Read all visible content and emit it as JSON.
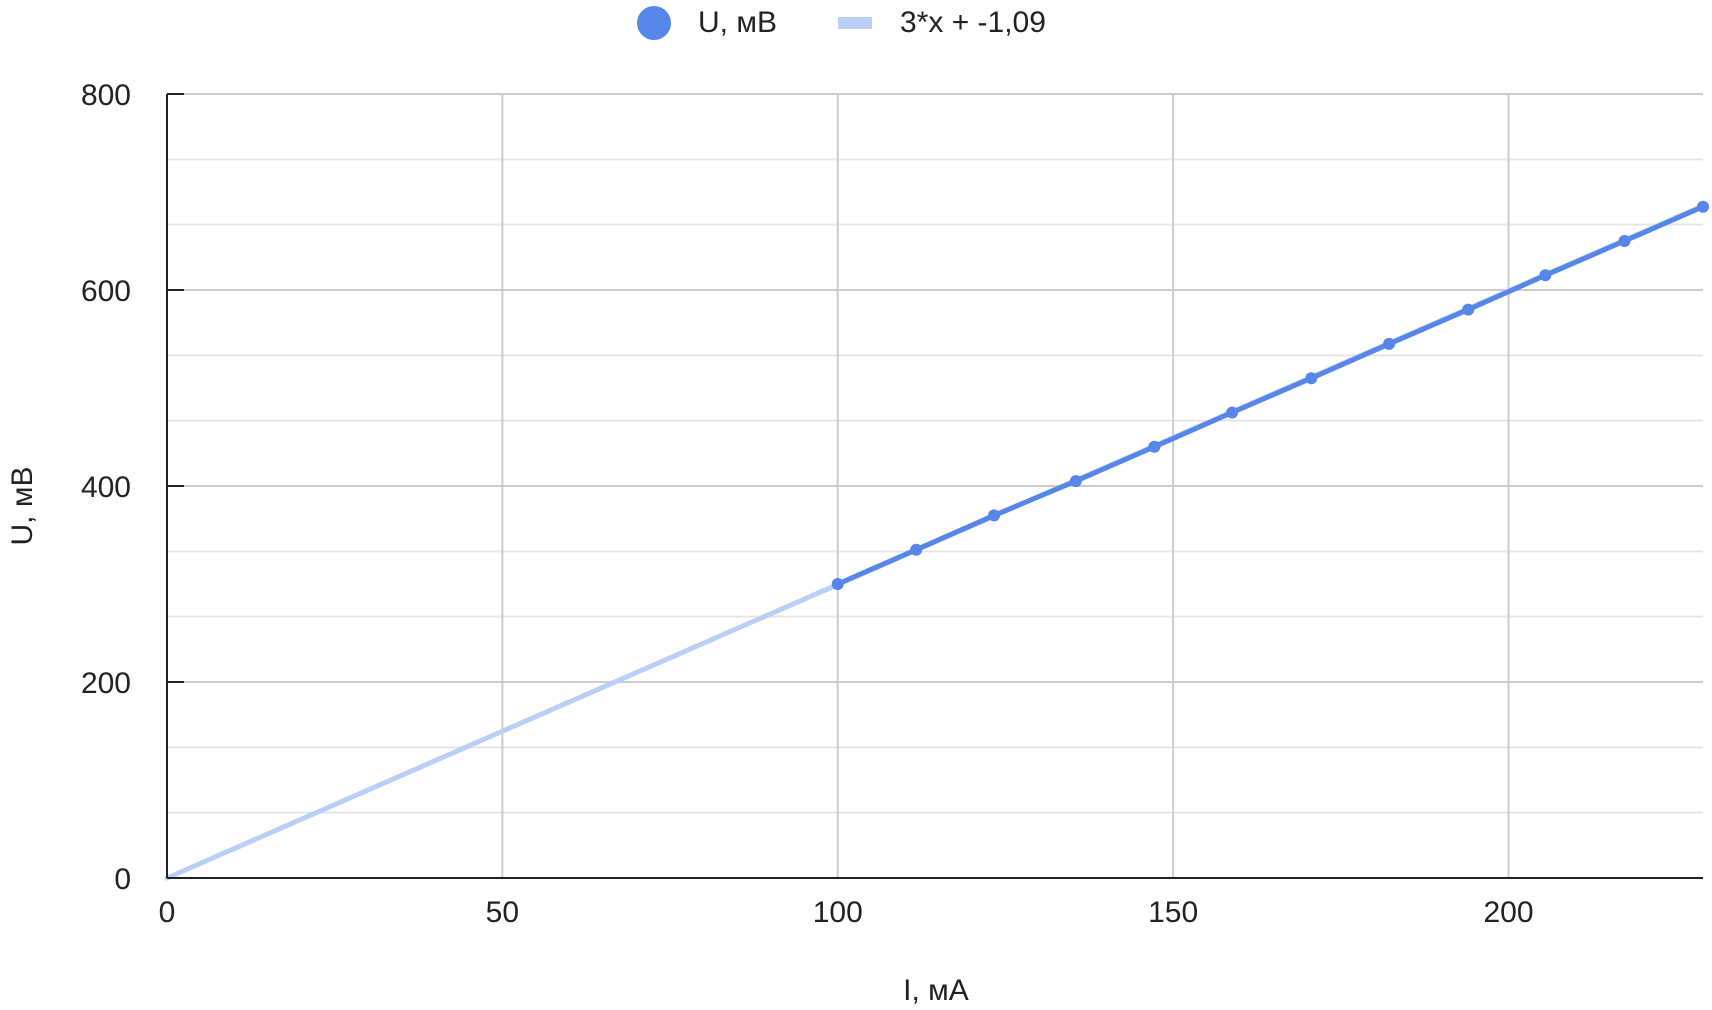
{
  "chart_data": {
    "type": "scatter",
    "title": "",
    "xlabel": "I, мА",
    "ylabel": "U, мВ",
    "xlim": [
      0,
      229
    ],
    "ylim": [
      0,
      800
    ],
    "x_ticks": [
      0,
      50,
      100,
      150,
      200
    ],
    "x_tick_labels": [
      "0",
      "50",
      "100",
      "150",
      "200"
    ],
    "y_ticks": [
      0,
      200,
      400,
      600,
      800
    ],
    "y_tick_labels": [
      "0",
      "200",
      "400",
      "600",
      "800"
    ],
    "y_minor_ticks": [
      66.7,
      133.3,
      266.7,
      333.3,
      466.7,
      533.3,
      666.7,
      733.3
    ],
    "grid": true,
    "legend_position": "top-center",
    "series": [
      {
        "name": "U, мВ",
        "kind": "points",
        "color": "#5586e8",
        "x": [
          100,
          111.7,
          123.3,
          135.5,
          147.2,
          158.8,
          170.6,
          182.2,
          194,
          205.5,
          217.3,
          229
        ],
        "y": [
          300,
          335,
          370,
          405,
          440,
          475,
          510,
          545,
          580,
          615,
          650,
          685
        ]
      },
      {
        "name": "3*x + -1,09",
        "kind": "trendline",
        "color": "#b9cff5",
        "slope": 3,
        "intercept": -1.09,
        "x_range": [
          0,
          229
        ]
      }
    ]
  }
}
